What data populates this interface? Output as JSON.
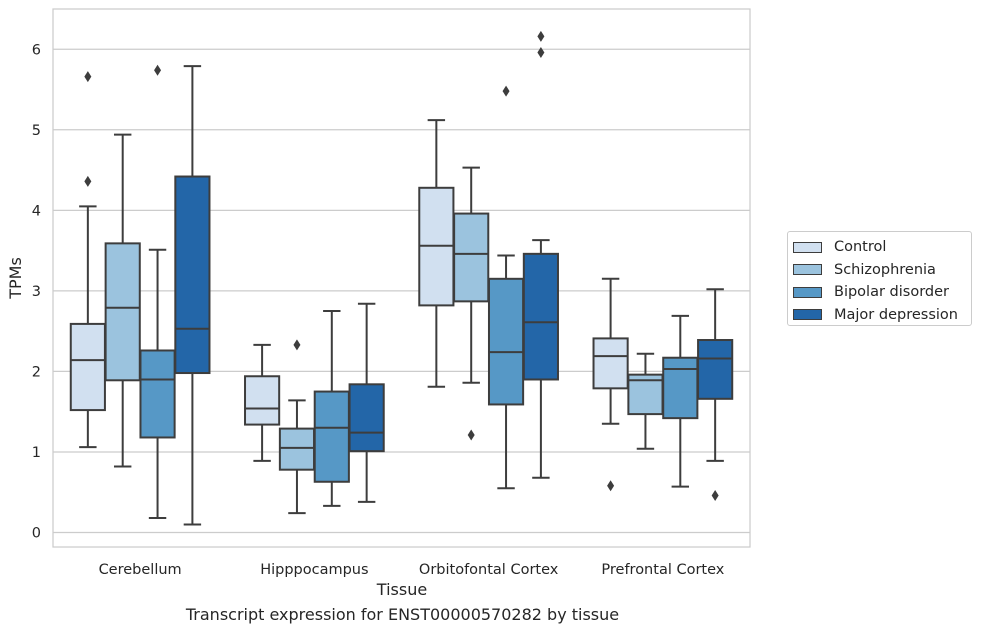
{
  "chart_data": {
    "type": "box",
    "xlabel": "Tissue",
    "ylabel": "TPMs",
    "caption": "Transcript expression for ENST00000570282 by tissue",
    "categories": [
      "Cerebellum",
      "Hipppocampus",
      "Orbitofontal Cortex",
      "Prefrontal Cortex"
    ],
    "ylim": [
      -0.18,
      6.5
    ],
    "yticks": [
      "0",
      "1",
      "2",
      "3",
      "4",
      "5",
      "6"
    ],
    "grid": "horizontal",
    "legend_position": "right",
    "series": [
      {
        "name": "Control",
        "color": "#d1e0f0",
        "boxes": [
          {
            "whislo": 1.06,
            "q1": 1.52,
            "med": 2.14,
            "q3": 2.59,
            "whishi": 4.05,
            "fliers": [
              4.36,
              5.66
            ]
          },
          {
            "whislo": 0.89,
            "q1": 1.34,
            "med": 1.54,
            "q3": 1.94,
            "whishi": 2.33,
            "fliers": []
          },
          {
            "whislo": 1.81,
            "q1": 2.82,
            "med": 3.56,
            "q3": 4.28,
            "whishi": 5.12,
            "fliers": []
          },
          {
            "whislo": 1.35,
            "q1": 1.79,
            "med": 2.19,
            "q3": 2.41,
            "whishi": 3.15,
            "fliers": [
              0.58
            ]
          }
        ]
      },
      {
        "name": "Schizophrenia",
        "color": "#9bc3de",
        "boxes": [
          {
            "whislo": 0.82,
            "q1": 1.89,
            "med": 2.79,
            "q3": 3.59,
            "whishi": 4.94,
            "fliers": []
          },
          {
            "whislo": 0.24,
            "q1": 0.78,
            "med": 1.05,
            "q3": 1.29,
            "whishi": 1.64,
            "fliers": [
              2.33
            ]
          },
          {
            "whislo": 1.86,
            "q1": 2.87,
            "med": 3.46,
            "q3": 3.96,
            "whishi": 4.53,
            "fliers": [
              1.21
            ]
          },
          {
            "whislo": 1.04,
            "q1": 1.47,
            "med": 1.89,
            "q3": 1.96,
            "whishi": 2.22,
            "fliers": []
          }
        ]
      },
      {
        "name": "Bipolar disorder",
        "color": "#5698c6",
        "boxes": [
          {
            "whislo": 0.18,
            "q1": 1.18,
            "med": 1.9,
            "q3": 2.26,
            "whishi": 3.51,
            "fliers": [
              5.74
            ]
          },
          {
            "whislo": 0.33,
            "q1": 0.63,
            "med": 1.3,
            "q3": 1.75,
            "whishi": 2.75,
            "fliers": []
          },
          {
            "whislo": 0.55,
            "q1": 1.59,
            "med": 2.24,
            "q3": 3.15,
            "whishi": 3.44,
            "fliers": [
              5.48
            ]
          },
          {
            "whislo": 0.57,
            "q1": 1.42,
            "med": 2.03,
            "q3": 2.17,
            "whishi": 2.69,
            "fliers": []
          }
        ]
      },
      {
        "name": "Major depression",
        "color": "#2366a8",
        "boxes": [
          {
            "whislo": 0.1,
            "q1": 1.98,
            "med": 2.53,
            "q3": 4.42,
            "whishi": 5.79,
            "fliers": []
          },
          {
            "whislo": 0.38,
            "q1": 1.01,
            "med": 1.24,
            "q3": 1.84,
            "whishi": 2.84,
            "fliers": []
          },
          {
            "whislo": 0.68,
            "q1": 1.9,
            "med": 2.61,
            "q3": 3.46,
            "whishi": 3.63,
            "fliers": [
              5.96,
              6.16
            ]
          },
          {
            "whislo": 0.89,
            "q1": 1.66,
            "med": 2.16,
            "q3": 2.39,
            "whishi": 3.02,
            "fliers": [
              0.46
            ]
          }
        ]
      }
    ]
  }
}
